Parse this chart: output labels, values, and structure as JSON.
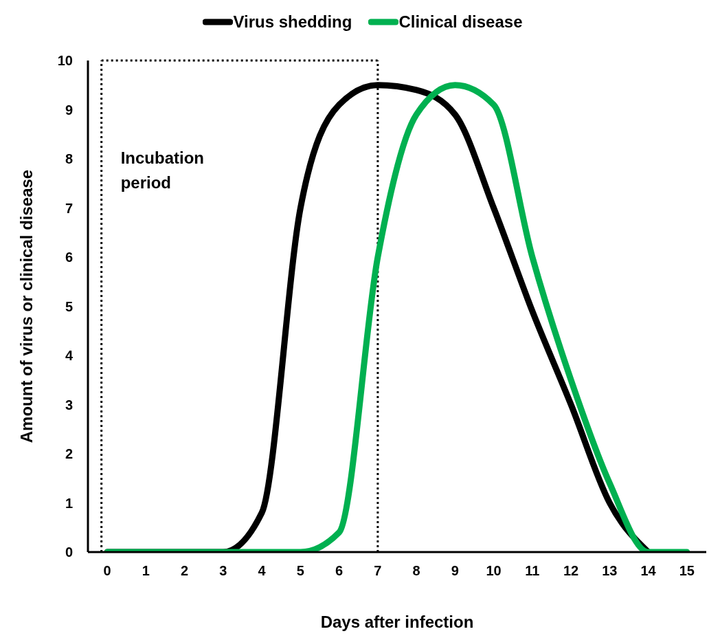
{
  "chart_data": {
    "type": "line",
    "xlabel": "Days after infection",
    "ylabel": "Amount of virus or clinical disease",
    "x": [
      0,
      1,
      2,
      3,
      4,
      5,
      6,
      7,
      8,
      9,
      10,
      11,
      12,
      13,
      14,
      15
    ],
    "series": [
      {
        "name": "Virus shedding",
        "color": "#000000",
        "values": [
          0,
          0,
          0,
          0,
          0.8,
          7,
          9.1,
          9.5,
          9.4,
          8.9,
          7,
          4.9,
          3,
          1,
          0,
          null
        ]
      },
      {
        "name": "Clinical disease",
        "color": "#00b050",
        "values": [
          0,
          0,
          0,
          0,
          0,
          0,
          0.4,
          6,
          8.9,
          9.5,
          9.1,
          6,
          3.5,
          1.4,
          0,
          0
        ]
      }
    ],
    "xlim": [
      -0.5,
      15.5
    ],
    "xticks": [
      0,
      1,
      2,
      3,
      4,
      5,
      6,
      7,
      8,
      9,
      10,
      11,
      12,
      13,
      14,
      15
    ],
    "ylim": [
      0,
      10
    ],
    "yticks": [
      0,
      1,
      2,
      3,
      4,
      5,
      6,
      7,
      8,
      9,
      10
    ],
    "ref_lines": [
      {
        "axis": "x",
        "value": -0.15,
        "line_style": "dotted"
      },
      {
        "axis": "x",
        "value": 7,
        "line_style": "dotted"
      }
    ],
    "annotations": [
      "Incubation period"
    ],
    "legend": "top",
    "marker": "none",
    "line_style": "solid",
    "grid": false
  }
}
